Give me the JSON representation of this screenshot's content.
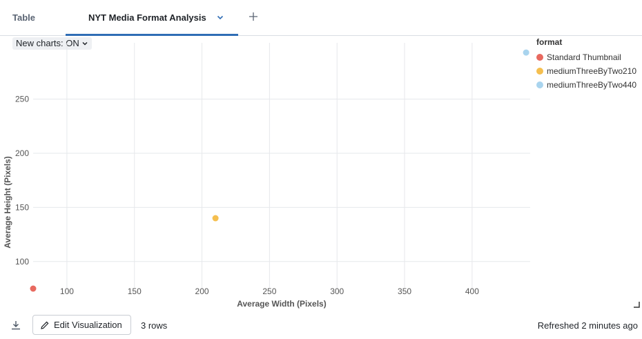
{
  "tabs": {
    "table_label": "Table",
    "active_label": "NYT Media Format Analysis"
  },
  "toolbar": {
    "new_charts_label": "New charts: ON"
  },
  "chart_data": {
    "type": "scatter",
    "xlabel": "Average Width (Pixels)",
    "ylabel": "Average Height (Pixels)",
    "xlim": [
      75,
      443
    ],
    "ylim": [
      75,
      302
    ],
    "xticks": [
      100,
      150,
      200,
      250,
      300,
      350,
      400
    ],
    "yticks": [
      100,
      150,
      200,
      250
    ],
    "grid": true,
    "legend_title": "format",
    "legend_position": "right",
    "series": [
      {
        "name": "Standard Thumbnail",
        "color": "#e8695f",
        "points": [
          {
            "x": 75,
            "y": 75
          }
        ]
      },
      {
        "name": "mediumThreeByTwo210",
        "color": "#f5bf4f",
        "points": [
          {
            "x": 210,
            "y": 140
          }
        ]
      },
      {
        "name": "mediumThreeByTwo440",
        "color": "#a9d4ee",
        "points": [
          {
            "x": 440,
            "y": 293
          }
        ]
      }
    ]
  },
  "footer": {
    "edit_label": "Edit Visualization",
    "rows_label": "3 rows",
    "refreshed_label": "Refreshed 2 minutes ago"
  }
}
